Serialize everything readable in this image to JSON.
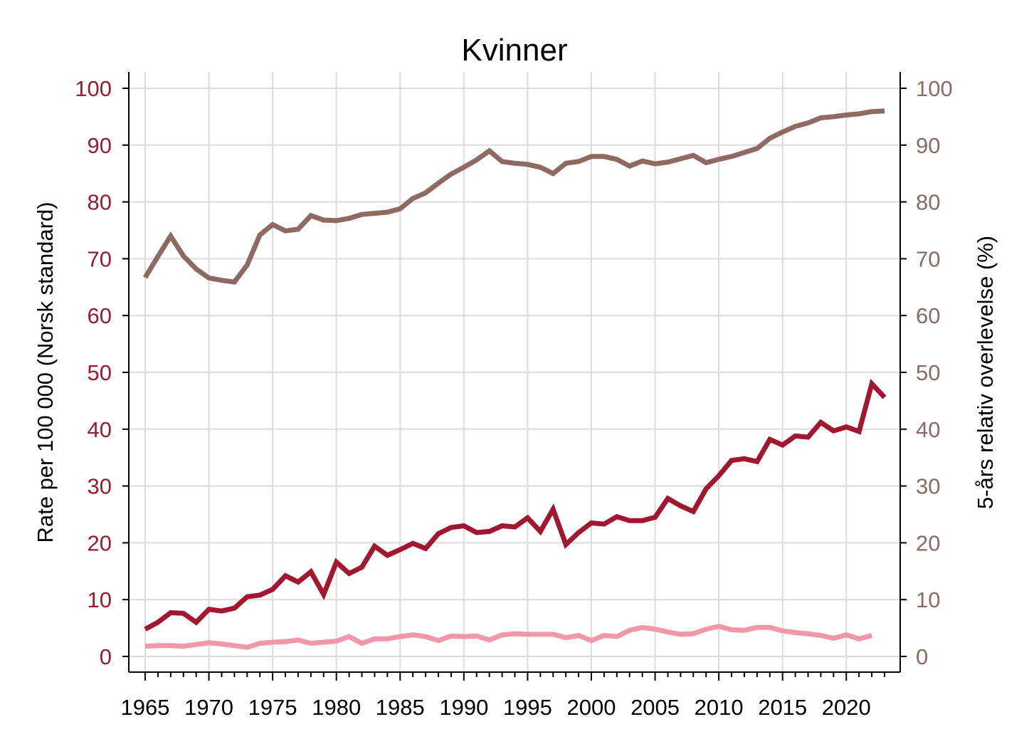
{
  "chart_data": {
    "type": "line",
    "title": "Kvinner",
    "ylabel_left": "Rate per 100 000 (Norsk standard)",
    "ylabel_right": "5-års relativ overlevelse (%)",
    "xlabel": "",
    "xlim": [
      1965,
      2023
    ],
    "ylim": [
      0,
      100
    ],
    "x_ticks": [
      1965,
      1970,
      1975,
      1980,
      1985,
      1990,
      1995,
      2000,
      2005,
      2010,
      2015,
      2020
    ],
    "y_ticks": [
      0,
      10,
      20,
      30,
      40,
      50,
      60,
      70,
      80,
      90,
      100
    ],
    "grid": true,
    "colors": {
      "left_axis_text": "#9b1b30",
      "right_axis_text": "#8a6a62"
    },
    "series": [
      {
        "axis": "right",
        "color": "#8f6a63",
        "x": [
          1965,
          1966,
          1967,
          1968,
          1969,
          1970,
          1971,
          1972,
          1973,
          1974,
          1975,
          1976,
          1977,
          1978,
          1979,
          1980,
          1981,
          1982,
          1983,
          1984,
          1985,
          1986,
          1987,
          1988,
          1989,
          1990,
          1991,
          1992,
          1993,
          1994,
          1995,
          1996,
          1997,
          1998,
          1999,
          2000,
          2001,
          2002,
          2003,
          2004,
          2005,
          2006,
          2007,
          2008,
          2009,
          2010,
          2011,
          2012,
          2013,
          2014,
          2015,
          2016,
          2017,
          2018,
          2019,
          2020,
          2021,
          2022,
          2023
        ],
        "y": [
          66.7,
          70.4,
          74.0,
          70.5,
          68.2,
          66.6,
          66.2,
          65.9,
          68.9,
          74.2,
          76.0,
          74.9,
          75.2,
          77.6,
          76.8,
          76.7,
          77.1,
          77.8,
          78.0,
          78.2,
          78.8,
          80.6,
          81.6,
          83.3,
          84.9,
          86.1,
          87.4,
          89.0,
          87.1,
          86.8,
          86.6,
          86.1,
          85.0,
          86.8,
          87.1,
          88.0,
          88.0,
          87.5,
          86.3,
          87.2,
          86.7,
          87.0,
          87.6,
          88.2,
          86.9,
          87.5,
          88.0,
          88.7,
          89.4,
          91.2,
          92.3,
          93.3,
          93.9,
          94.8,
          95.0,
          95.3,
          95.5,
          95.9,
          96.0
        ]
      },
      {
        "axis": "left",
        "color": "#a3162f",
        "x": [
          1965,
          1966,
          1967,
          1968,
          1969,
          1970,
          1971,
          1972,
          1973,
          1974,
          1975,
          1976,
          1977,
          1978,
          1979,
          1980,
          1981,
          1982,
          1983,
          1984,
          1985,
          1986,
          1987,
          1988,
          1989,
          1990,
          1991,
          1992,
          1993,
          1994,
          1995,
          1996,
          1997,
          1998,
          1999,
          2000,
          2001,
          2002,
          2003,
          2004,
          2005,
          2006,
          2007,
          2008,
          2009,
          2010,
          2011,
          2012,
          2013,
          2014,
          2015,
          2016,
          2017,
          2018,
          2019,
          2020,
          2021,
          2022,
          2023
        ],
        "y": [
          4.8,
          6.0,
          7.7,
          7.6,
          6.0,
          8.3,
          8.0,
          8.5,
          10.5,
          10.8,
          11.8,
          14.2,
          13.1,
          14.9,
          10.9,
          16.6,
          14.6,
          15.7,
          19.4,
          17.8,
          18.8,
          19.9,
          19.0,
          21.6,
          22.7,
          23.0,
          21.8,
          22.0,
          23.0,
          22.8,
          24.4,
          22.0,
          25.9,
          19.7,
          21.8,
          23.5,
          23.3,
          24.6,
          23.9,
          23.9,
          24.5,
          27.8,
          26.5,
          25.5,
          29.5,
          31.8,
          34.5,
          34.8,
          34.3,
          38.2,
          37.2,
          38.8,
          38.6,
          41.2,
          39.7,
          40.4,
          39.6,
          48.0,
          45.6
        ]
      },
      {
        "axis": "left",
        "color": "#f097aa",
        "x": [
          1965,
          1966,
          1967,
          1968,
          1969,
          1970,
          1971,
          1972,
          1973,
          1974,
          1975,
          1976,
          1977,
          1978,
          1979,
          1980,
          1981,
          1982,
          1983,
          1984,
          1985,
          1986,
          1987,
          1988,
          1989,
          1990,
          1991,
          1992,
          1993,
          1994,
          1995,
          1996,
          1997,
          1998,
          1999,
          2000,
          2001,
          2002,
          2003,
          2004,
          2005,
          2006,
          2007,
          2008,
          2009,
          2010,
          2011,
          2012,
          2013,
          2014,
          2015,
          2016,
          2017,
          2018,
          2019,
          2020,
          2021,
          2022
        ],
        "y": [
          1.8,
          1.9,
          1.9,
          1.8,
          2.1,
          2.4,
          2.2,
          1.9,
          1.6,
          2.3,
          2.5,
          2.6,
          2.9,
          2.3,
          2.5,
          2.7,
          3.5,
          2.3,
          3.1,
          3.1,
          3.5,
          3.8,
          3.5,
          2.8,
          3.6,
          3.5,
          3.6,
          2.9,
          3.8,
          4.0,
          3.9,
          3.9,
          3.9,
          3.3,
          3.7,
          2.8,
          3.7,
          3.5,
          4.6,
          5.1,
          4.8,
          4.3,
          3.9,
          4.0,
          4.8,
          5.3,
          4.7,
          4.6,
          5.1,
          5.1,
          4.5,
          4.2,
          4.0,
          3.7,
          3.2,
          3.8,
          3.1,
          3.7
        ]
      }
    ]
  }
}
